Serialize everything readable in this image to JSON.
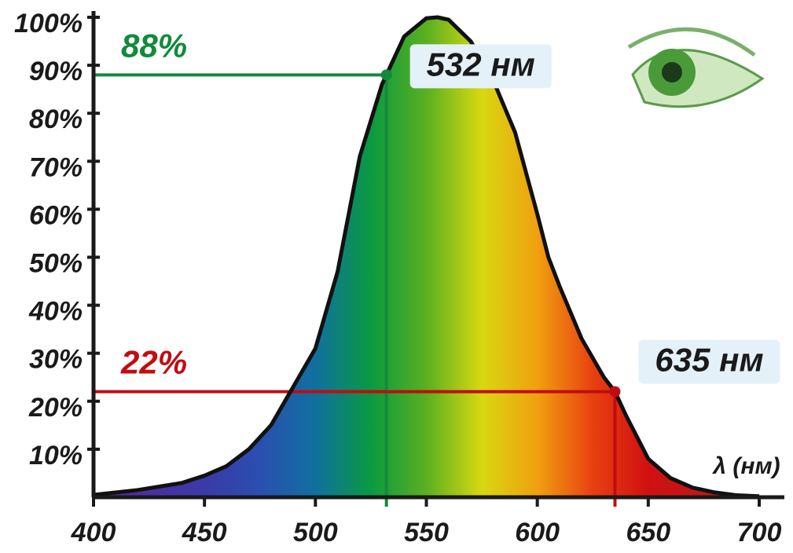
{
  "chart_data": {
    "type": "area",
    "x": [
      400,
      420,
      440,
      450,
      460,
      470,
      480,
      490,
      500,
      510,
      520,
      530,
      532,
      540,
      550,
      555,
      560,
      570,
      580,
      590,
      600,
      605,
      610,
      620,
      630,
      635,
      640,
      650,
      660,
      670,
      680,
      690,
      700
    ],
    "values": [
      0.5,
      1.5,
      3,
      4.5,
      6.5,
      10,
      15,
      23,
      31,
      47,
      71,
      86,
      88,
      96,
      99.8,
      100,
      99.5,
      95,
      87,
      76,
      59,
      50,
      44,
      33,
      25,
      22,
      17,
      8,
      4,
      2,
      1,
      0.4,
      0.2
    ],
    "line_color": "#111111",
    "fill_colors": [
      "#5a2a9a",
      "#4a30a0",
      "#3a3aa8",
      "#2a4fb0",
      "#1070a0",
      "#0a9a40",
      "#5ab020",
      "#d8d810",
      "#f0a010",
      "#e84010",
      "#d01010",
      "#c01818",
      "#b01818"
    ],
    "xlim": [
      400,
      710
    ],
    "ylim": [
      0,
      100
    ],
    "xticks": [
      400,
      450,
      500,
      550,
      600,
      650,
      700
    ],
    "yticks": [
      {
        "value": 10,
        "label": "10%"
      },
      {
        "value": 20,
        "label": "20%"
      },
      {
        "value": 30,
        "label": "30%"
      },
      {
        "value": 40,
        "label": "40%"
      },
      {
        "value": 50,
        "label": "50%"
      },
      {
        "value": 60,
        "label": "60%"
      },
      {
        "value": 70,
        "label": "70%"
      },
      {
        "value": 80,
        "label": "80%"
      },
      {
        "value": 90,
        "label": "90%"
      },
      {
        "value": 100,
        "label": "100%"
      }
    ],
    "x_label": "λ (нм)",
    "markers": [
      {
        "x": 532,
        "y": 88,
        "color": "#128a3c",
        "y_label": "88%",
        "x_label": "532 нм"
      },
      {
        "x": 635,
        "y": 22,
        "color": "#c00d12",
        "y_label": "22%",
        "x_label": "635 нм"
      }
    ]
  }
}
